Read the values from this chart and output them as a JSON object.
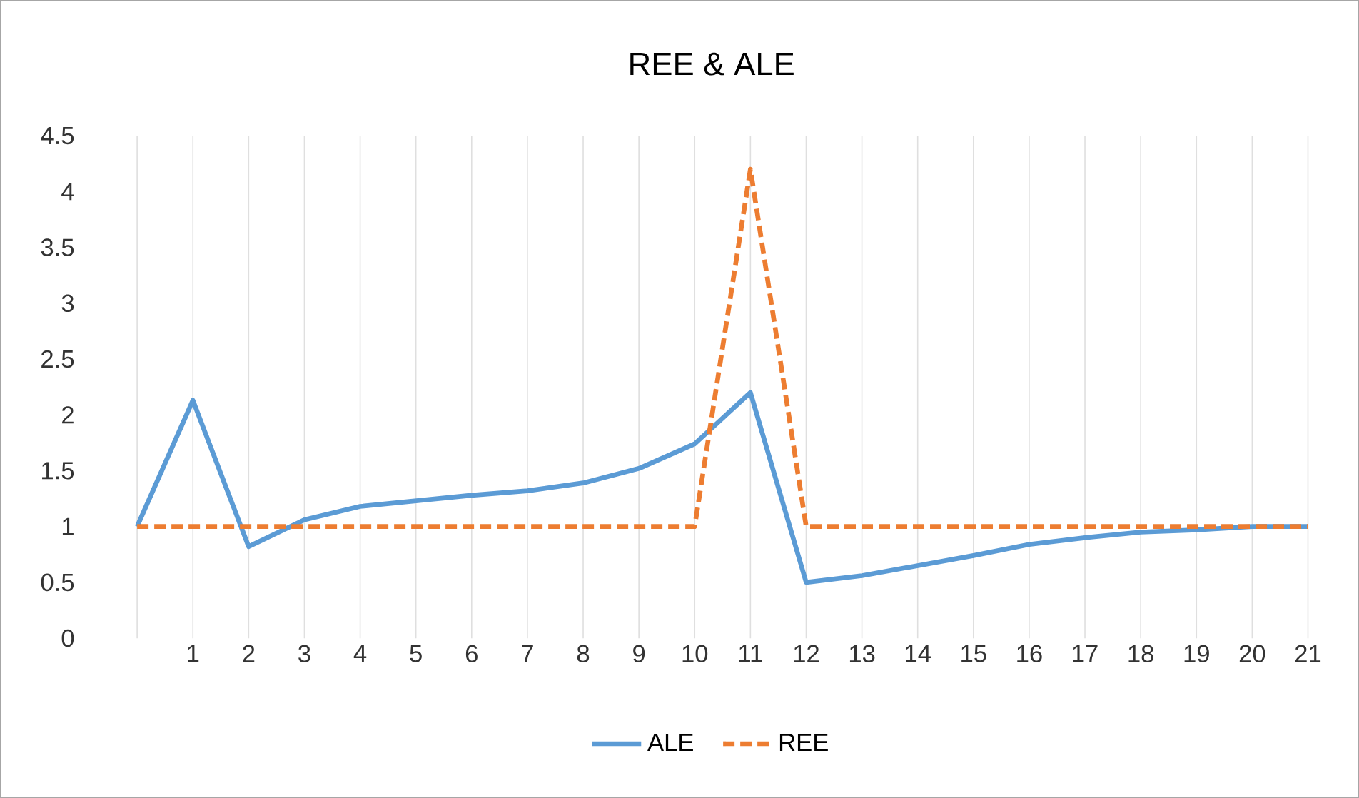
{
  "chart_data": {
    "type": "line",
    "title": "REE & ALE",
    "categories": [
      null,
      "1",
      "2",
      "3",
      "4",
      "5",
      "6",
      "7",
      "8",
      "9",
      "10",
      "11",
      "12",
      "13",
      "14",
      "15",
      "16",
      "17",
      "18",
      "19",
      "20",
      "21"
    ],
    "series": [
      {
        "name": "ALE",
        "color": "#5b9bd5",
        "line_style": "solid",
        "values": [
          1.0,
          2.13,
          0.82,
          1.06,
          1.18,
          1.23,
          1.28,
          1.32,
          1.39,
          1.52,
          1.74,
          2.2,
          0.5,
          0.56,
          0.65,
          0.74,
          0.84,
          0.9,
          0.95,
          0.97,
          1.0,
          1.0
        ]
      },
      {
        "name": "REE",
        "color": "#ed7d31",
        "line_style": "dashed",
        "values": [
          1,
          1,
          1,
          1,
          1,
          1,
          1,
          1,
          1,
          1,
          1,
          4.2,
          1,
          1,
          1,
          1,
          1,
          1,
          1,
          1,
          1,
          1
        ]
      }
    ],
    "ylim": [
      0,
      4.5
    ],
    "yticks": [
      0,
      0.5,
      1,
      1.5,
      2,
      2.5,
      3,
      3.5,
      4,
      4.5
    ],
    "grid": "x",
    "legend": "bottom",
    "marker": "none"
  }
}
